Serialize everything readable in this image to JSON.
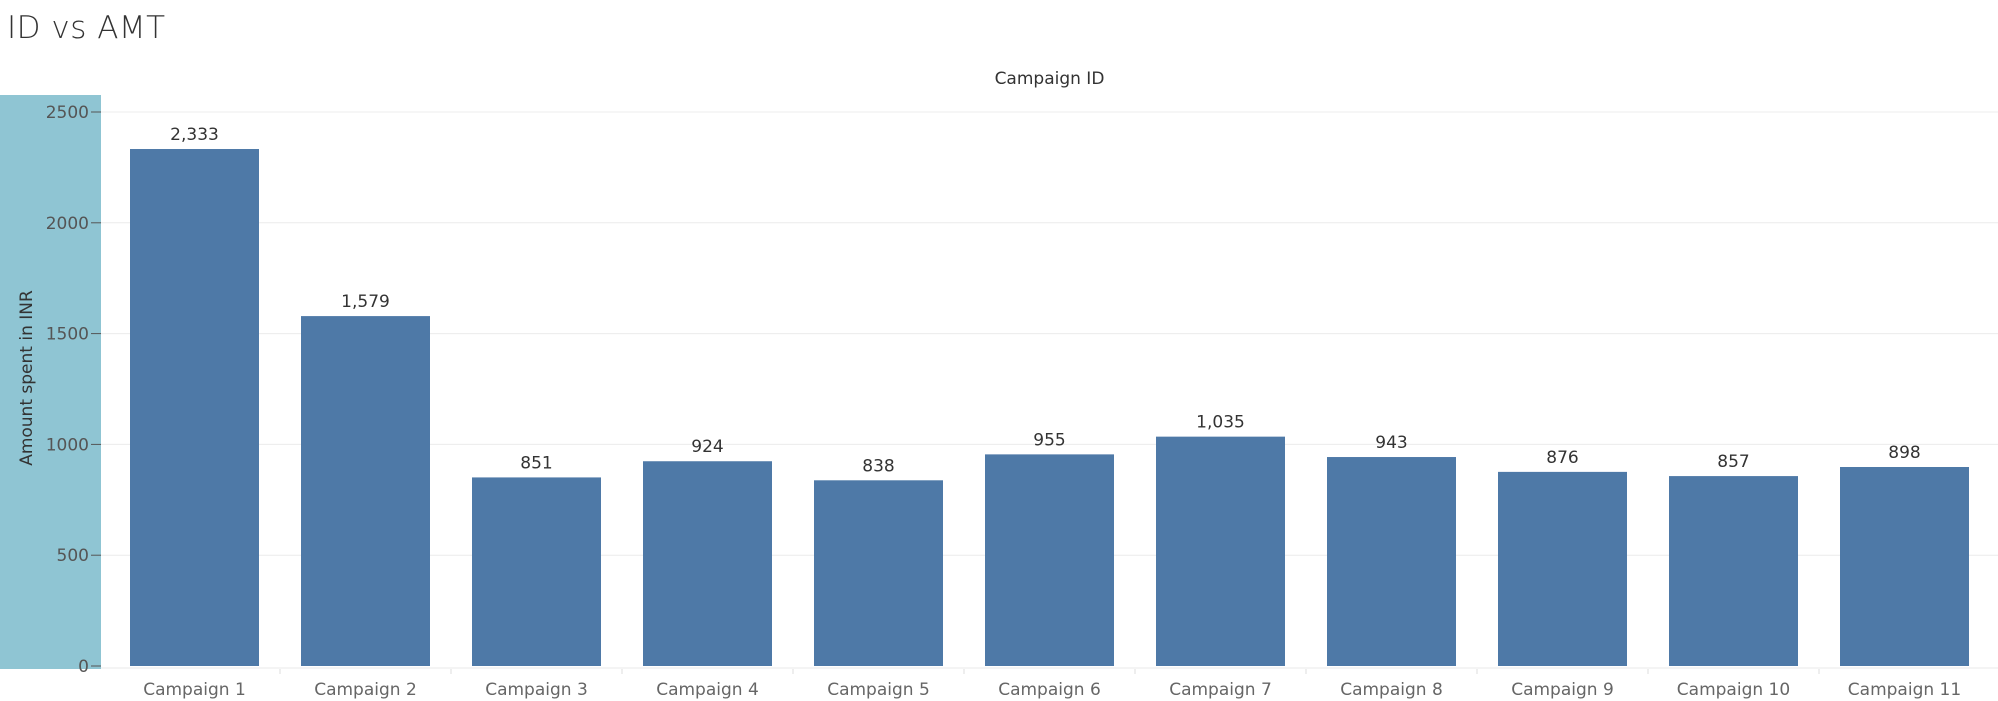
{
  "title": "ID vs AMT",
  "chart_data": {
    "type": "bar",
    "title": "ID vs AMT",
    "xlabel": "Campaign ID",
    "ylabel": "Amount spent in INR",
    "categories": [
      "Campaign 1",
      "Campaign 2",
      "Campaign 3",
      "Campaign 4",
      "Campaign 5",
      "Campaign 6",
      "Campaign 7",
      "Campaign 8",
      "Campaign 9",
      "Campaign 10",
      "Campaign 11"
    ],
    "values": [
      2333,
      1579,
      851,
      924,
      838,
      955,
      1035,
      943,
      876,
      857,
      898
    ],
    "data_labels": [
      "2,333",
      "1,579",
      "851",
      "924",
      "838",
      "955",
      "1,035",
      "943",
      "876",
      "857",
      "898"
    ],
    "yticks": [
      0,
      500,
      1000,
      1500,
      2000,
      2500
    ],
    "ylim": [
      0,
      2500
    ],
    "grid": true,
    "bar_color": "#4e79a7",
    "axis_band_color": "#8fc5d3"
  }
}
